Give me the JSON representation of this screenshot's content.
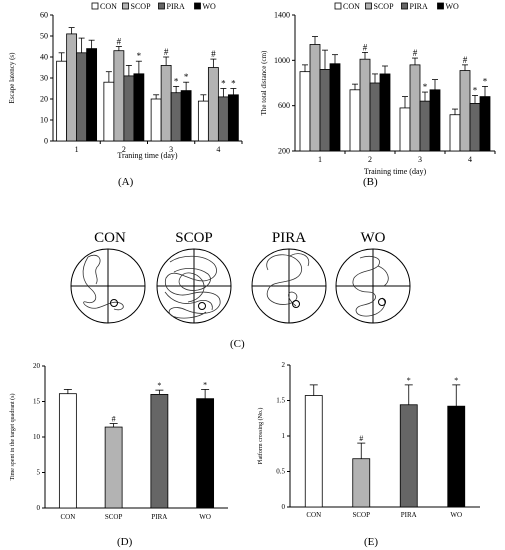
{
  "colors": {
    "CON": "#ffffff",
    "SCOP": "#b3b3b3",
    "PIRA": "#666666",
    "WO": "#000000",
    "axis": "#000000"
  },
  "panel_labels": [
    "(A)",
    "(B)",
    "(C)",
    "(D)",
    "(E)"
  ],
  "maze": {
    "titles": [
      "CON",
      "SCOP",
      "PIRA",
      "WO"
    ]
  },
  "chart_data": [
    {
      "id": "A",
      "type": "bar",
      "title": "",
      "xlabel": "Traning time (day)",
      "ylabel": "Escape latency (s)",
      "categories": [
        "1",
        "2",
        "3",
        "4"
      ],
      "ylim": [
        0,
        60
      ],
      "yticks": [
        "0",
        "10",
        "20",
        "30",
        "40",
        "50",
        "60"
      ],
      "legend": "top",
      "series": [
        {
          "name": "CON",
          "values": [
            38,
            28,
            20,
            19
          ],
          "errors": [
            4,
            5,
            2,
            3
          ],
          "marks": [
            "",
            "",
            "",
            ""
          ]
        },
        {
          "name": "SCOP",
          "values": [
            51,
            43,
            36,
            35
          ],
          "errors": [
            3,
            2,
            4,
            4
          ],
          "marks": [
            "",
            "#",
            "#",
            "#"
          ]
        },
        {
          "name": "PIRA",
          "values": [
            42,
            31,
            23,
            21
          ],
          "errors": [
            7,
            5,
            3,
            4
          ],
          "marks": [
            "",
            "",
            "*",
            "*"
          ]
        },
        {
          "name": "WO",
          "values": [
            44,
            32,
            24,
            22
          ],
          "errors": [
            4,
            6,
            4,
            3
          ],
          "marks": [
            "",
            "*",
            "*",
            "*"
          ]
        }
      ]
    },
    {
      "id": "B",
      "type": "bar",
      "title": "",
      "xlabel": "Training time (day)",
      "ylabel": "The total distance (cm)",
      "categories": [
        "1",
        "2",
        "3",
        "4"
      ],
      "ylim": [
        200,
        1400
      ],
      "yticks": [
        "200",
        "600",
        "1000",
        "1400"
      ],
      "legend": "top",
      "series": [
        {
          "name": "CON",
          "values": [
            900,
            740,
            580,
            520
          ],
          "errors": [
            60,
            50,
            100,
            50
          ],
          "marks": [
            "",
            "",
            "",
            ""
          ]
        },
        {
          "name": "SCOP",
          "values": [
            1140,
            1010,
            960,
            910
          ],
          "errors": [
            70,
            60,
            60,
            50
          ],
          "marks": [
            "",
            "#",
            "#",
            "#"
          ]
        },
        {
          "name": "PIRA",
          "values": [
            920,
            800,
            640,
            620
          ],
          "errors": [
            170,
            80,
            80,
            70
          ],
          "marks": [
            "",
            "",
            "*",
            "*"
          ]
        },
        {
          "name": "WO",
          "values": [
            970,
            880,
            740,
            680
          ],
          "errors": [
            80,
            70,
            90,
            90
          ],
          "marks": [
            "",
            "",
            "",
            "*"
          ]
        }
      ]
    },
    {
      "id": "D",
      "type": "bar",
      "title": "",
      "xlabel": "",
      "ylabel": "Time spent in the target quadrant  (s)",
      "categories": [
        "CON",
        "SCOP",
        "PIRA",
        "WO"
      ],
      "ylim": [
        0,
        20
      ],
      "yticks": [
        "0",
        "5",
        "10",
        "15",
        "20"
      ],
      "series": [
        {
          "name": "",
          "values": [
            16.1,
            11.4,
            16.0,
            15.4
          ],
          "errors": [
            0.6,
            0.5,
            0.6,
            1.3
          ],
          "marks": [
            "",
            "#",
            "*",
            "*"
          ]
        }
      ]
    },
    {
      "id": "E",
      "type": "bar",
      "title": "",
      "xlabel": "",
      "ylabel": "Platform crossing (No.)",
      "categories": [
        "CON",
        "SCOP",
        "PIRA",
        "WO"
      ],
      "ylim": [
        0,
        2
      ],
      "yticks": [
        "0",
        "0.5",
        "1",
        "1.5",
        "2"
      ],
      "series": [
        {
          "name": "",
          "values": [
            1.57,
            0.68,
            1.44,
            1.42
          ],
          "errors": [
            0.15,
            0.22,
            0.28,
            0.3
          ],
          "marks": [
            "",
            "#",
            "*",
            "*"
          ]
        }
      ]
    }
  ]
}
